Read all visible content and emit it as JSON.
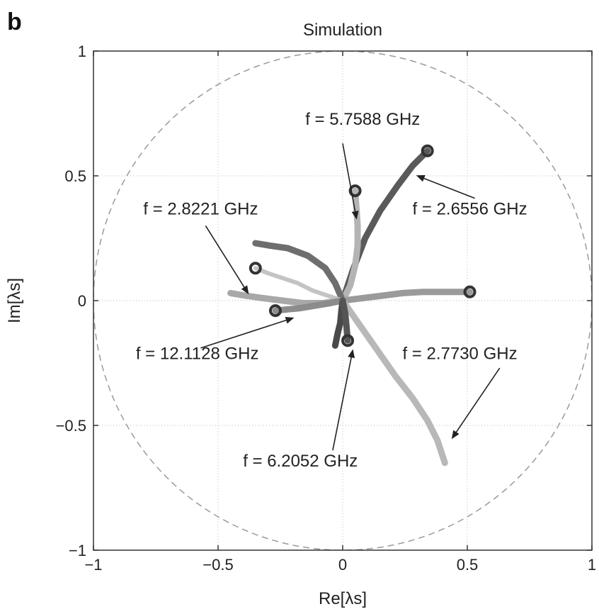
{
  "chart_data": {
    "type": "line",
    "panel_label": "b",
    "title": "Simulation",
    "xlabel": "Re[λs]",
    "ylabel": "Im[λs]",
    "xlim": [
      -1,
      1
    ],
    "ylim": [
      -1,
      1
    ],
    "xticks": [
      -1,
      -0.5,
      0,
      0.5,
      1
    ],
    "yticks": [
      -1,
      -0.5,
      0,
      0.5,
      1
    ],
    "xtick_labels": [
      "−1",
      "−0.5",
      "0",
      "0.5",
      "1"
    ],
    "ytick_labels": [
      "−1",
      "−0.5",
      "0",
      "0.5",
      "1"
    ],
    "grid": true,
    "unit_circle": true,
    "series": [
      {
        "color": "#5a5a5a",
        "width": 9,
        "points": [
          [
            0.0,
            0.0
          ],
          [
            0.04,
            0.12
          ],
          [
            0.09,
            0.25
          ],
          [
            0.15,
            0.36
          ],
          [
            0.22,
            0.46
          ],
          [
            0.28,
            0.54
          ],
          [
            0.34,
            0.6
          ]
        ],
        "marker": [
          0.34,
          0.6
        ]
      },
      {
        "color": "#b4b4b4",
        "width": 9,
        "points": [
          [
            0.0,
            0.0
          ],
          [
            0.03,
            0.06
          ],
          [
            0.05,
            0.14
          ],
          [
            0.06,
            0.22
          ],
          [
            0.06,
            0.3
          ],
          [
            0.055,
            0.37
          ],
          [
            0.05,
            0.44
          ]
        ],
        "marker": [
          0.05,
          0.44
        ]
      },
      {
        "color": "#6e6e6e",
        "width": 9,
        "points": [
          [
            0.0,
            0.0
          ],
          [
            -0.03,
            0.07
          ],
          [
            -0.07,
            0.13
          ],
          [
            -0.14,
            0.18
          ],
          [
            -0.22,
            0.21
          ],
          [
            -0.29,
            0.22
          ],
          [
            -0.35,
            0.23
          ]
        ],
        "marker": null
      },
      {
        "color": "#c4c4c4",
        "width": 6,
        "points": [
          [
            0.0,
            0.0
          ],
          [
            -0.06,
            0.02
          ],
          [
            -0.12,
            0.04
          ],
          [
            -0.18,
            0.07
          ],
          [
            -0.24,
            0.09
          ],
          [
            -0.3,
            0.11
          ],
          [
            -0.35,
            0.13
          ]
        ],
        "marker": [
          -0.35,
          0.13
        ]
      },
      {
        "color": "#a8a8a8",
        "width": 9,
        "points": [
          [
            0.0,
            0.0
          ],
          [
            -0.08,
            -0.01
          ],
          [
            -0.16,
            -0.01
          ],
          [
            -0.24,
            0.0
          ],
          [
            -0.32,
            0.01
          ],
          [
            -0.39,
            0.02
          ],
          [
            -0.45,
            0.03
          ]
        ],
        "marker": null
      },
      {
        "color": "#8c8c8c",
        "width": 9,
        "points": [
          [
            0.0,
            0.0
          ],
          [
            -0.05,
            -0.01
          ],
          [
            -0.11,
            -0.02
          ],
          [
            -0.17,
            -0.03
          ],
          [
            -0.22,
            -0.035
          ],
          [
            -0.27,
            -0.04
          ]
        ],
        "marker": [
          -0.27,
          -0.04
        ]
      },
      {
        "color": "#9a9a9a",
        "width": 9,
        "points": [
          [
            0.0,
            0.0
          ],
          [
            0.08,
            0.01
          ],
          [
            0.16,
            0.02
          ],
          [
            0.24,
            0.03
          ],
          [
            0.32,
            0.035
          ],
          [
            0.42,
            0.035
          ],
          [
            0.51,
            0.035
          ]
        ],
        "marker": [
          0.51,
          0.035
        ]
      },
      {
        "color": "#b8b8b8",
        "width": 9,
        "points": [
          [
            0.0,
            0.0
          ],
          [
            0.07,
            -0.1
          ],
          [
            0.14,
            -0.2
          ],
          [
            0.21,
            -0.3
          ],
          [
            0.28,
            -0.39
          ],
          [
            0.34,
            -0.48
          ],
          [
            0.38,
            -0.56
          ],
          [
            0.41,
            -0.65
          ]
        ],
        "marker": null
      },
      {
        "color": "#4a4a4a",
        "width": 9,
        "points": [
          [
            0.0,
            0.0
          ],
          [
            -0.005,
            -0.04
          ],
          [
            -0.01,
            -0.09
          ],
          [
            -0.02,
            -0.13
          ],
          [
            -0.03,
            -0.18
          ]
        ],
        "marker": null
      },
      {
        "color": "#555555",
        "width": 9,
        "points": [
          [
            0.0,
            0.0
          ],
          [
            0.01,
            -0.05
          ],
          [
            0.015,
            -0.1
          ],
          [
            0.02,
            -0.16
          ]
        ],
        "marker": [
          0.02,
          -0.16
        ]
      }
    ],
    "annotations": [
      {
        "label": "f = 5.7588 GHz",
        "text_x": -0.15,
        "text_y": 0.705,
        "arrow_from": [
          0.0,
          0.63
        ],
        "arrow_to": [
          0.055,
          0.33
        ]
      },
      {
        "label": "f = 2.6556 GHz",
        "text_x": 0.28,
        "text_y": 0.345,
        "arrow_from": [
          0.53,
          0.41
        ],
        "arrow_to": [
          0.3,
          0.5
        ]
      },
      {
        "label": "f = 2.8221 GHz",
        "text_x": -0.8,
        "text_y": 0.345,
        "arrow_from": [
          -0.55,
          0.3
        ],
        "arrow_to": [
          -0.38,
          0.03
        ]
      },
      {
        "label": "f = 12.1128 GHz",
        "text_x": -0.83,
        "text_y": -0.235,
        "arrow_from": [
          -0.57,
          -0.19
        ],
        "arrow_to": [
          -0.2,
          -0.07
        ]
      },
      {
        "label": "f = 6.2052 GHz",
        "text_x": -0.4,
        "text_y": -0.665,
        "arrow_from": [
          -0.04,
          -0.6
        ],
        "arrow_to": [
          0.04,
          -0.2
        ]
      },
      {
        "label": "f = 2.7730 GHz",
        "text_x": 0.24,
        "text_y": -0.235,
        "arrow_from": [
          0.63,
          -0.27
        ],
        "arrow_to": [
          0.44,
          -0.55
        ]
      }
    ]
  }
}
